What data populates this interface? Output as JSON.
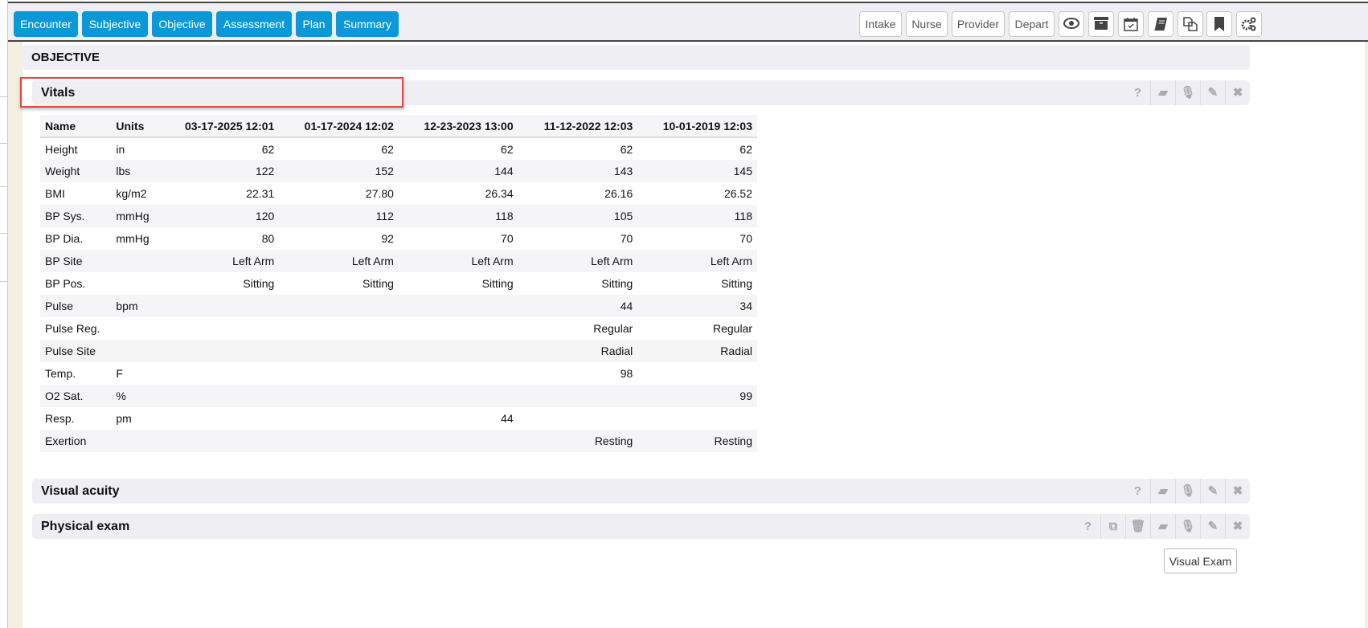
{
  "nav": {
    "tabs": [
      "Encounter",
      "Subjective",
      "Objective",
      "Assessment",
      "Plan",
      "Summary"
    ],
    "right_buttons": [
      "Intake",
      "Nurse",
      "Provider",
      "Depart"
    ],
    "right_icons": [
      "eye-icon",
      "archive-icon",
      "calendar-check-icon",
      "book-icon",
      "copy-icon",
      "bookmark-icon",
      "gears-icon"
    ],
    "accent": "#0a98d6"
  },
  "section": {
    "title": "OBJECTIVE"
  },
  "vitals": {
    "title": "Vitals",
    "columns": [
      "Name",
      "Units",
      "03-17-2025 12:01",
      "01-17-2024 12:02",
      "12-23-2023 13:00",
      "11-12-2022 12:03",
      "10-01-2019 12:03"
    ],
    "rows": [
      [
        "Height",
        "in",
        "62",
        "62",
        "62",
        "62",
        "62"
      ],
      [
        "Weight",
        "lbs",
        "122",
        "152",
        "144",
        "143",
        "145"
      ],
      [
        "BMI",
        "kg/m2",
        "22.31",
        "27.80",
        "26.34",
        "26.16",
        "26.52"
      ],
      [
        "BP Sys.",
        "mmHg",
        "120",
        "112",
        "118",
        "105",
        "118"
      ],
      [
        "BP Dia.",
        "mmHg",
        "80",
        "92",
        "70",
        "70",
        "70"
      ],
      [
        "BP Site",
        "",
        "Left Arm",
        "Left Arm",
        "Left Arm",
        "Left Arm",
        "Left Arm"
      ],
      [
        "BP Pos.",
        "",
        "Sitting",
        "Sitting",
        "Sitting",
        "Sitting",
        "Sitting"
      ],
      [
        "Pulse",
        "bpm",
        "",
        "",
        "",
        "44",
        "34"
      ],
      [
        "Pulse Reg.",
        "",
        "",
        "",
        "",
        "Regular",
        "Regular"
      ],
      [
        "Pulse Site",
        "",
        "",
        "",
        "",
        "Radial",
        "Radial"
      ],
      [
        "Temp.",
        "F",
        "",
        "",
        "",
        "98",
        ""
      ],
      [
        "O2 Sat.",
        "%",
        "",
        "",
        "",
        "",
        "99"
      ],
      [
        "Resp.",
        "pm",
        "",
        "",
        "44",
        "",
        ""
      ],
      [
        "Exertion",
        "",
        "",
        "",
        "",
        "Resting",
        "Resting"
      ]
    ]
  },
  "visual_acuity": {
    "title": "Visual acuity"
  },
  "physical_exam": {
    "title": "Physical exam"
  },
  "visual_exam_button": "Visual Exam",
  "highlight_color": "#e84545"
}
